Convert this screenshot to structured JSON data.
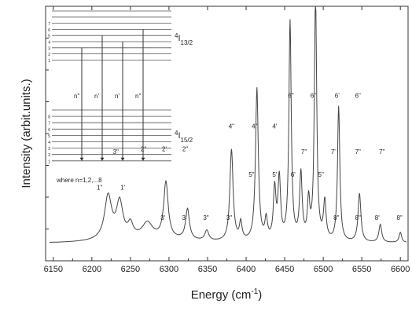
{
  "chart_data": {
    "type": "line",
    "title": "",
    "xlabel": "Energy (cm",
    "xlabel_sup": "-1",
    "xlabel_end": ")",
    "ylabel": "Intensity (arbit.units.)",
    "xlim": [
      6140,
      6610
    ],
    "ylim": [
      0,
      1
    ],
    "x_ticks": [
      6150,
      6200,
      6250,
      6300,
      6350,
      6400,
      6450,
      6500,
      6550,
      6600
    ],
    "y_ticks_labeled": false,
    "grid": false,
    "series": [
      {
        "baseline": 0.07,
        "peaks": [
          {
            "x": 6221,
            "h": 0.17,
            "w": 5.5
          },
          {
            "x": 6236,
            "h": 0.14,
            "w": 5
          },
          {
            "x": 6250,
            "h": 0.05,
            "w": 4
          },
          {
            "x": 6272,
            "h": 0.06,
            "w": 8
          },
          {
            "x": 6296,
            "h": 0.22,
            "w": 3.5
          },
          {
            "x": 6324,
            "h": 0.12,
            "w": 3
          },
          {
            "x": 6349,
            "h": 0.04,
            "w": 3
          },
          {
            "x": 6381,
            "h": 0.36,
            "w": 2.5
          },
          {
            "x": 6393,
            "h": 0.07,
            "w": 2
          },
          {
            "x": 6414,
            "h": 0.6,
            "w": 2.2
          },
          {
            "x": 6426,
            "h": 0.08,
            "w": 2
          },
          {
            "x": 6437,
            "h": 0.2,
            "w": 2
          },
          {
            "x": 6443,
            "h": 0.24,
            "w": 2
          },
          {
            "x": 6457,
            "h": 0.86,
            "w": 1.8
          },
          {
            "x": 6471,
            "h": 0.26,
            "w": 2
          },
          {
            "x": 6481,
            "h": 0.15,
            "w": 1.8
          },
          {
            "x": 6490,
            "h": 0.96,
            "w": 1.8
          },
          {
            "x": 6502,
            "h": 0.15,
            "w": 2
          },
          {
            "x": 6520,
            "h": 0.53,
            "w": 1.8
          },
          {
            "x": 6547,
            "h": 0.19,
            "w": 2.2
          },
          {
            "x": 6574,
            "h": 0.07,
            "w": 2.2
          },
          {
            "x": 6600,
            "h": 0.04,
            "w": 2
          }
        ]
      }
    ],
    "annotations": [
      {
        "text": "1\"",
        "x": 6210,
        "y": 0.28
      },
      {
        "text": "3\"",
        "x": 6231,
        "y": 0.42
      },
      {
        "text": "1'",
        "x": 6240,
        "y": 0.28
      },
      {
        "text": "2\"",
        "x": 6267,
        "y": 0.43
      },
      {
        "text": "2'",
        "x": 6294,
        "y": 0.43
      },
      {
        "text": "3'",
        "x": 6292,
        "y": 0.16
      },
      {
        "text": "2\"",
        "x": 6321,
        "y": 0.43
      },
      {
        "text": "3'",
        "x": 6320,
        "y": 0.16
      },
      {
        "text": "3\"",
        "x": 6348,
        "y": 0.16
      },
      {
        "text": "3\"",
        "x": 6378,
        "y": 0.16
      },
      {
        "text": "4\"",
        "x": 6381,
        "y": 0.52
      },
      {
        "text": "4\"",
        "x": 6411,
        "y": 0.52
      },
      {
        "text": "5\"",
        "x": 6407,
        "y": 0.33
      },
      {
        "text": "4'",
        "x": 6437,
        "y": 0.52
      },
      {
        "text": "5'",
        "x": 6437,
        "y": 0.33
      },
      {
        "text": "6\"",
        "x": 6458,
        "y": 0.64
      },
      {
        "text": "6'",
        "x": 6461,
        "y": 0.33
      },
      {
        "text": "6\"",
        "x": 6487,
        "y": 0.64
      },
      {
        "text": "7\"",
        "x": 6475,
        "y": 0.42
      },
      {
        "text": "5\"",
        "x": 6497,
        "y": 0.33
      },
      {
        "text": "6'",
        "x": 6518,
        "y": 0.64
      },
      {
        "text": "7'",
        "x": 6513,
        "y": 0.42
      },
      {
        "text": "6\"",
        "x": 6545,
        "y": 0.64
      },
      {
        "text": "8\"",
        "x": 6517,
        "y": 0.16
      },
      {
        "text": "7\"",
        "x": 6545,
        "y": 0.42
      },
      {
        "text": "8\"",
        "x": 6545,
        "y": 0.16
      },
      {
        "text": "7\"",
        "x": 6576,
        "y": 0.42
      },
      {
        "text": "8'",
        "x": 6570,
        "y": 0.16
      },
      {
        "text": "8\"",
        "x": 6599,
        "y": 0.16
      }
    ],
    "inset": {
      "upper_level": "4",
      "upper_term": "I",
      "upper_sub": "13/2",
      "lower_level": "4",
      "lower_term": "I",
      "lower_sub": "15/2",
      "transitions": [
        "n\"",
        "n'",
        "n'",
        "n\""
      ],
      "lower_numbers": [
        "8",
        "7",
        "6",
        "5",
        "4",
        "3",
        "2",
        "1"
      ],
      "upper_numbers": [
        "7",
        "6",
        "5",
        "4",
        "3",
        "2",
        "1"
      ],
      "note": "where n=1,2,...8"
    }
  }
}
